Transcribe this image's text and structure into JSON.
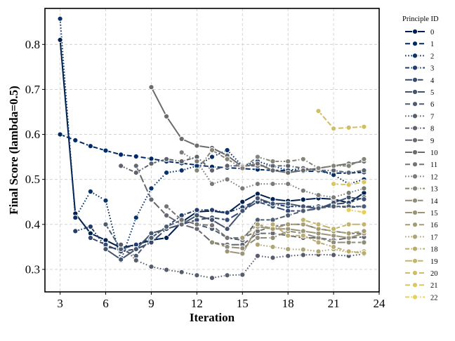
{
  "chart_data": {
    "type": "line",
    "xlabel": "Iteration",
    "ylabel": "Final Score (lambda=0.5)",
    "xlim": [
      2,
      24
    ],
    "ylim": [
      0.25,
      0.88
    ],
    "xticks": [
      3,
      6,
      9,
      12,
      15,
      18,
      21,
      24
    ],
    "yticks": [
      0.3,
      0.4,
      0.5,
      0.6,
      0.7,
      0.8
    ],
    "grid": true,
    "legend": {
      "title": "Principle ID",
      "placement": "outside-right"
    },
    "series": [
      {
        "name": "0",
        "color": "#00204d",
        "dash": "solid",
        "x": [
          3,
          4,
          5,
          6,
          7,
          8,
          9,
          10,
          11,
          12,
          13,
          14,
          15,
          16,
          17,
          18,
          19,
          20,
          21,
          22,
          23
        ],
        "values": [
          0.81,
          0.424,
          0.38,
          0.365,
          0.348,
          0.355,
          0.365,
          0.37,
          0.405,
          0.428,
          0.43,
          0.425,
          0.45,
          0.468,
          0.456,
          0.452,
          0.455,
          0.458,
          0.456,
          0.448,
          0.47
        ]
      },
      {
        "name": "1",
        "color": "#002a66",
        "dash": "dash",
        "x": [
          3,
          4,
          5,
          6,
          7,
          8,
          9,
          10,
          11,
          12,
          13,
          14,
          15,
          16,
          17,
          18,
          19,
          20,
          21,
          22,
          23
        ],
        "values": [
          0.6,
          0.587,
          0.574,
          0.564,
          0.555,
          0.551,
          0.546,
          0.54,
          0.536,
          0.532,
          0.528,
          0.526,
          0.524,
          0.522,
          0.52,
          0.52,
          0.518,
          0.518,
          0.514,
          0.514,
          0.516
        ]
      },
      {
        "name": "2",
        "color": "#0a326a",
        "dash": "dot",
        "x": [
          3,
          4,
          5,
          6,
          7,
          8,
          9,
          10,
          11,
          12,
          13,
          14,
          15,
          16,
          17,
          18,
          19,
          20,
          21,
          22,
          23
        ],
        "values": [
          0.857,
          0.415,
          0.473,
          0.453,
          0.32,
          0.415,
          0.48,
          0.515,
          0.52,
          0.53,
          0.55,
          0.565,
          0.53,
          0.54,
          0.53,
          0.52,
          0.525,
          0.52,
          0.51,
          0.49,
          0.5
        ]
      },
      {
        "name": "3",
        "color": "#233e6c",
        "dash": "dashdot",
        "x": [
          4,
          5,
          6,
          7,
          8,
          9,
          10,
          11,
          12,
          13,
          14,
          15,
          16,
          17,
          18,
          19,
          20,
          21,
          22,
          23
        ],
        "values": [
          0.385,
          0.395,
          0.35,
          0.345,
          0.355,
          0.37,
          0.395,
          0.42,
          0.432,
          0.432,
          0.426,
          0.438,
          0.454,
          0.445,
          0.44,
          0.44,
          0.44,
          0.44,
          0.438,
          0.44
        ]
      },
      {
        "name": "4",
        "color": "#34496e",
        "dash": "longdash",
        "x": [
          5,
          6,
          7,
          8,
          9,
          10,
          11,
          12,
          13,
          14,
          15,
          16,
          17,
          18,
          19,
          20,
          21,
          22,
          23
        ],
        "values": [
          0.37,
          0.355,
          0.34,
          0.345,
          0.36,
          0.39,
          0.4,
          0.41,
          0.415,
          0.41,
          0.43,
          0.45,
          0.44,
          0.43,
          0.43,
          0.435,
          0.445,
          0.448,
          0.46
        ]
      },
      {
        "name": "5",
        "color": "#42536e",
        "dash": "solid",
        "x": [
          6,
          7,
          8,
          9,
          10,
          11,
          12,
          13,
          14,
          15,
          16,
          17,
          18,
          19,
          20,
          21,
          22,
          23
        ],
        "values": [
          0.345,
          0.322,
          0.345,
          0.38,
          0.39,
          0.4,
          0.42,
          0.41,
          0.39,
          0.43,
          0.458,
          0.446,
          0.446,
          0.44,
          0.435,
          0.448,
          0.46,
          0.456
        ]
      },
      {
        "name": "6",
        "color": "#4d5d70",
        "dash": "dash",
        "x": [
          6,
          7,
          8,
          9,
          10,
          11,
          12,
          13,
          14,
          15,
          16,
          17,
          18,
          19,
          20,
          21,
          22,
          23
        ],
        "values": [
          0.4,
          0.345,
          0.33,
          0.37,
          0.395,
          0.41,
          0.4,
          0.39,
          0.37,
          0.365,
          0.41,
          0.41,
          0.42,
          0.43,
          0.436,
          0.44,
          0.44,
          0.44
        ]
      },
      {
        "name": "7",
        "color": "#575d6d",
        "dash": "dot",
        "x": [
          7,
          8,
          9,
          10,
          11,
          12,
          13,
          14,
          15,
          16,
          17,
          18,
          19,
          20,
          21,
          22,
          23
        ],
        "values": [
          0.355,
          0.32,
          0.306,
          0.299,
          0.294,
          0.287,
          0.281,
          0.287,
          0.288,
          0.33,
          0.326,
          0.33,
          0.332,
          0.333,
          0.332,
          0.33,
          0.334
        ]
      },
      {
        "name": "8",
        "color": "#5f636e",
        "dash": "dashdot",
        "x": [
          7,
          8,
          9,
          10,
          11,
          12,
          13,
          14,
          15,
          16,
          17,
          18,
          19,
          20,
          21,
          22,
          23
        ],
        "values": [
          0.53,
          0.515,
          0.535,
          0.545,
          0.54,
          0.55,
          0.52,
          0.53,
          0.53,
          0.53,
          0.53,
          0.53,
          0.525,
          0.52,
          0.52,
          0.515,
          0.52
        ]
      },
      {
        "name": "9",
        "color": "#666870",
        "dash": "longdash",
        "x": [
          8,
          9,
          10,
          11,
          12,
          13,
          14,
          15,
          16,
          17,
          18,
          19,
          20,
          21,
          22,
          23
        ],
        "values": [
          0.53,
          0.455,
          0.42,
          0.4,
          0.39,
          0.36,
          0.355,
          0.355,
          0.38,
          0.38,
          0.375,
          0.37,
          0.37,
          0.365,
          0.37,
          0.372
        ]
      },
      {
        "name": "10",
        "color": "#6b6b6e",
        "dash": "solid",
        "x": [
          9,
          10,
          11,
          12,
          13,
          14,
          15,
          16,
          17,
          18,
          19,
          20,
          21,
          22,
          23
        ],
        "values": [
          0.705,
          0.64,
          0.59,
          0.575,
          0.57,
          0.553,
          0.528,
          0.535,
          0.52,
          0.515,
          0.52,
          0.525,
          0.53,
          0.535,
          0.54
        ]
      },
      {
        "name": "11",
        "color": "#747474",
        "dash": "dash",
        "x": [
          10,
          11,
          12,
          13,
          14,
          15,
          16,
          17,
          18,
          19,
          20,
          21,
          22,
          23
        ],
        "values": [
          0.44,
          0.41,
          0.4,
          0.398,
          0.37,
          0.37,
          0.385,
          0.395,
          0.4,
          0.4,
          0.39,
          0.385,
          0.38,
          0.38
        ]
      },
      {
        "name": "12",
        "color": "#7c7b78",
        "dash": "dot",
        "x": [
          11,
          12,
          13,
          14,
          15,
          16,
          17,
          18,
          19,
          20,
          21,
          22,
          23
        ],
        "values": [
          0.56,
          0.54,
          0.49,
          0.5,
          0.48,
          0.49,
          0.49,
          0.49,
          0.475,
          0.465,
          0.46,
          0.47,
          0.48
        ]
      },
      {
        "name": "13",
        "color": "#868379",
        "dash": "dashdot",
        "x": [
          12,
          13,
          14,
          15,
          16,
          17,
          18,
          19,
          20,
          21,
          22,
          23
        ],
        "values": [
          0.52,
          0.565,
          0.545,
          0.525,
          0.55,
          0.54,
          0.54,
          0.545,
          0.525,
          0.53,
          0.53,
          0.545
        ]
      },
      {
        "name": "14",
        "color": "#918c78",
        "dash": "longdash",
        "x": [
          13,
          14,
          15,
          16,
          17,
          18,
          19,
          20,
          21,
          22,
          23
        ],
        "values": [
          0.36,
          0.35,
          0.347,
          0.37,
          0.37,
          0.385,
          0.38,
          0.37,
          0.36,
          0.36,
          0.36
        ]
      },
      {
        "name": "15",
        "color": "#9b9477",
        "dash": "solid",
        "x": [
          14,
          15,
          16,
          17,
          18,
          19,
          20,
          21,
          22,
          23
        ],
        "values": [
          0.34,
          0.335,
          0.395,
          0.39,
          0.39,
          0.385,
          0.38,
          0.375,
          0.37,
          0.38
        ]
      },
      {
        "name": "16",
        "color": "#a59c74",
        "dash": "dash",
        "x": [
          15,
          16,
          17,
          18,
          19,
          20,
          21,
          22,
          23
        ],
        "values": [
          0.37,
          0.4,
          0.39,
          0.4,
          0.4,
          0.39,
          0.385,
          0.38,
          0.385
        ]
      },
      {
        "name": "17",
        "color": "#afa473",
        "dash": "dot",
        "x": [
          16,
          17,
          18,
          19,
          20,
          21,
          22,
          23
        ],
        "values": [
          0.355,
          0.35,
          0.345,
          0.344,
          0.34,
          0.345,
          0.338,
          0.34
        ]
      },
      {
        "name": "18",
        "color": "#baac6f",
        "dash": "dashdot",
        "x": [
          17,
          18,
          19,
          20,
          21,
          22,
          23
        ],
        "values": [
          0.4,
          0.375,
          0.375,
          0.36,
          0.35,
          0.34,
          0.336
        ]
      },
      {
        "name": "19",
        "color": "#c4b56c",
        "dash": "longdash",
        "x": [
          19,
          20,
          21,
          22,
          23
        ],
        "values": [
          0.41,
          0.4,
          0.39,
          0.4,
          0.4
        ]
      },
      {
        "name": "20",
        "color": "#cfbe68",
        "dash": "dash",
        "x": [
          20,
          21,
          22,
          23
        ],
        "values": [
          0.652,
          0.613,
          0.615,
          0.617
        ]
      },
      {
        "name": "21",
        "color": "#dbc761",
        "dash": "dash",
        "x": [
          21,
          22,
          23
        ],
        "values": [
          0.49,
          0.488,
          0.494
        ]
      },
      {
        "name": "22",
        "color": "#e6d05c",
        "dash": "dashdot",
        "x": [
          22,
          23
        ],
        "values": [
          0.432,
          0.427
        ]
      }
    ]
  }
}
